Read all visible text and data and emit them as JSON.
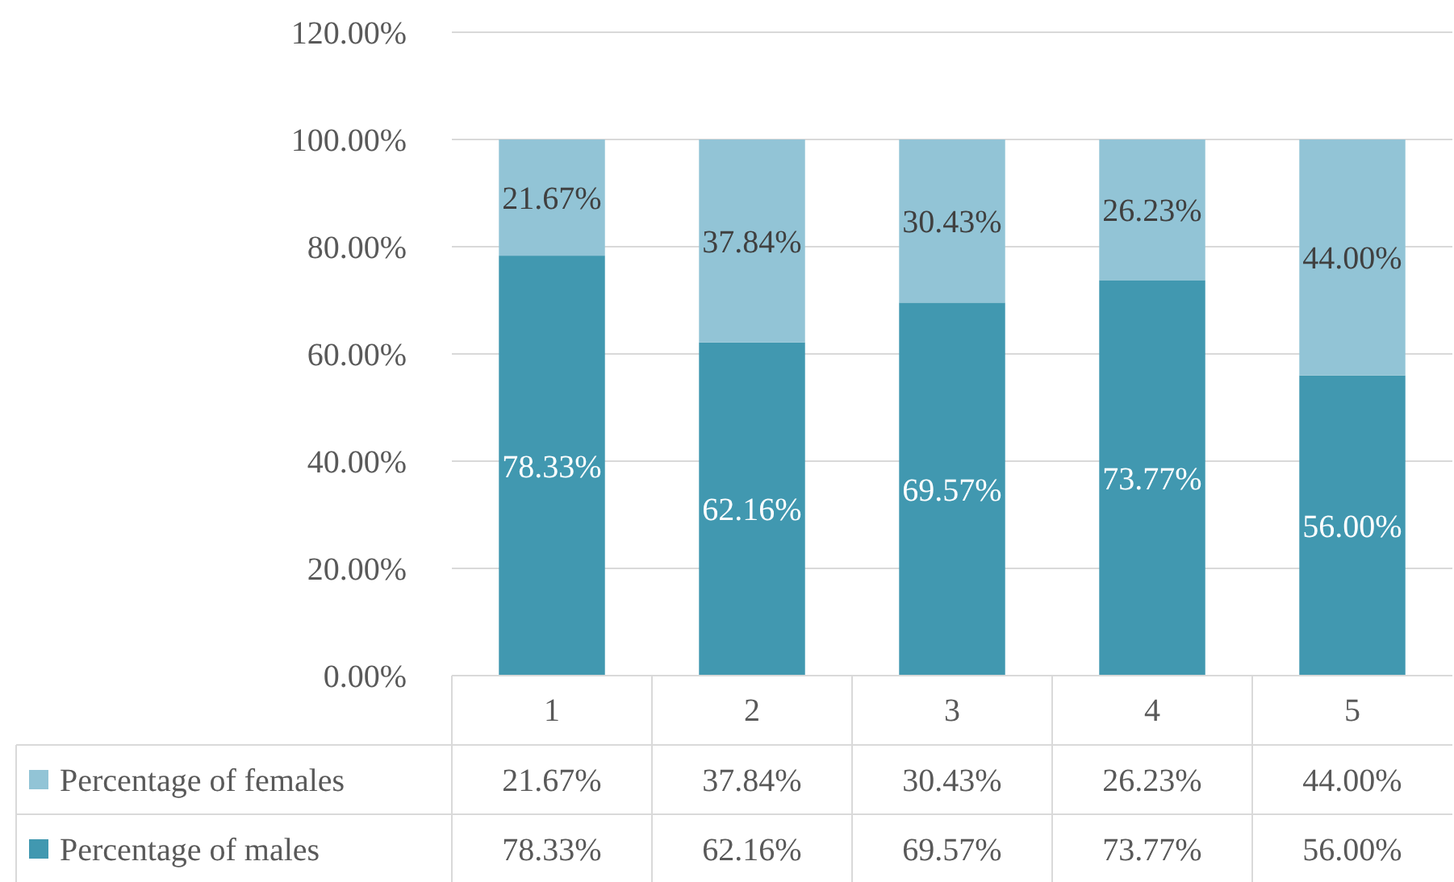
{
  "chart_data": {
    "type": "bar",
    "stacked": true,
    "categories": [
      "1",
      "2",
      "3",
      "4",
      "5"
    ],
    "series": [
      {
        "name": "Percentage of males",
        "color": "#4198b0",
        "values": [
          78.33,
          62.16,
          69.57,
          73.77,
          56.0
        ],
        "value_labels": [
          "78.33%",
          "62.16%",
          "69.57%",
          "73.77%",
          "56.00%"
        ]
      },
      {
        "name": "Percentage of females",
        "color": "#92c4d6",
        "values": [
          21.67,
          37.84,
          30.43,
          26.23,
          44.0
        ],
        "value_labels": [
          "21.67%",
          "37.84%",
          "30.43%",
          "26.23%",
          "44.00%"
        ]
      }
    ],
    "ylim": [
      0,
      120
    ],
    "yticks": [
      {
        "value": 0,
        "label": "0.00%"
      },
      {
        "value": 20,
        "label": "20.00%"
      },
      {
        "value": 40,
        "label": "40.00%"
      },
      {
        "value": 60,
        "label": "60.00%"
      },
      {
        "value": 80,
        "label": "80.00%"
      },
      {
        "value": 100,
        "label": "100.00%"
      },
      {
        "value": 120,
        "label": "120.00%"
      }
    ],
    "grid": "y",
    "legend": "bottom"
  }
}
